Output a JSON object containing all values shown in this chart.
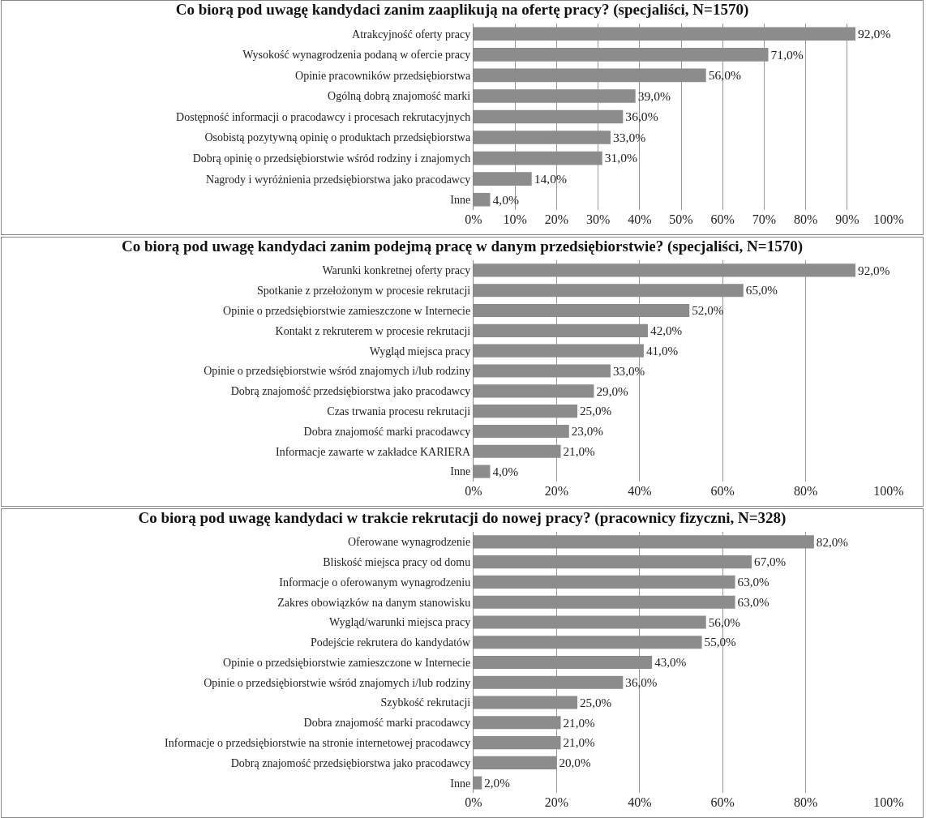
{
  "chart_data": [
    {
      "type": "bar",
      "orientation": "horizontal",
      "title": "Co biorą pod uwagę kandydaci zanim zaaplikują na ofertę pracy? (specjaliści, N=1570)",
      "categories": [
        "Atrakcyjność oferty pracy",
        "Wysokość wynagrodzenia podaną w ofercie pracy",
        "Opinie pracowników przedsiębiorstwa",
        "Ogólną dobrą znajomość marki",
        "Dostępność informacji o pracodawcy i procesach rekrutacyjnych",
        "Osobistą pozytywną opinię o produktach przedsiębiorstwa",
        "Dobrą opinię o przedsiębiorstwie wśród rodziny i znajomych",
        "Nagrody i wyróżnienia przedsiębiorstwa jako pracodawcy",
        "Inne"
      ],
      "values": [
        92,
        71,
        56,
        39,
        36,
        33,
        31,
        14,
        4
      ],
      "value_labels": [
        "92,0%",
        "71,0%",
        "56,0%",
        "39,0%",
        "36,0%",
        "33,0%",
        "31,0%",
        "14,0%",
        "4,0%"
      ],
      "color": "#8c8c8c",
      "xlim": [
        0,
        100
      ],
      "xticks": [
        {
          "value": 0,
          "label": "0%"
        },
        {
          "value": 10,
          "label": "10%"
        },
        {
          "value": 20,
          "label": "20%"
        },
        {
          "value": 30,
          "label": "30%"
        },
        {
          "value": 40,
          "label": "40%"
        },
        {
          "value": 50,
          "label": "50%"
        },
        {
          "value": 60,
          "label": "60%"
        },
        {
          "value": 70,
          "label": "70%"
        },
        {
          "value": 80,
          "label": "80%"
        },
        {
          "value": 90,
          "label": "90%"
        },
        {
          "value": 100,
          "label": "100%"
        }
      ],
      "grid": "x",
      "legend": false
    },
    {
      "type": "bar",
      "orientation": "horizontal",
      "title": "Co biorą pod uwagę kandydaci zanim podejmą pracę w danym przedsiębiorstwie? (specjaliści, N=1570)",
      "categories": [
        "Warunki konkretnej oferty pracy",
        "Spotkanie z przełożonym w procesie rekrutacji",
        "Opinie o przedsiębiorstwie zamieszczone w Internecie",
        "Kontakt z rekruterem w procesie rekrutacji",
        "Wygląd miejsca pracy",
        "Opinie o przedsiębiorstwie wśród znajomych i/lub rodziny",
        "Dobrą znajomość przedsiębiorstwa jako pracodawcy",
        "Czas trwania procesu rekrutacji",
        "Dobra znajomość marki pracodawcy",
        "Informacje zawarte w zakładce KARIERA",
        "Inne"
      ],
      "values": [
        92,
        65,
        52,
        42,
        41,
        33,
        29,
        25,
        23,
        21,
        4
      ],
      "value_labels": [
        "92,0%",
        "65,0%",
        "52,0%",
        "42,0%",
        "41,0%",
        "33,0%",
        "29,0%",
        "25,0%",
        "23,0%",
        "21,0%",
        "4,0%"
      ],
      "color": "#8c8c8c",
      "xlim": [
        0,
        100
      ],
      "xticks": [
        {
          "value": 0,
          "label": "0%"
        },
        {
          "value": 20,
          "label": "20%"
        },
        {
          "value": 40,
          "label": "40%"
        },
        {
          "value": 60,
          "label": "60%"
        },
        {
          "value": 80,
          "label": "80%"
        },
        {
          "value": 100,
          "label": "100%"
        }
      ],
      "grid": "x",
      "legend": false
    },
    {
      "type": "bar",
      "orientation": "horizontal",
      "title": "Co biorą pod uwagę kandydaci w trakcie rekrutacji do nowej pracy? (pracownicy fizyczni, N=328)",
      "categories": [
        "Oferowane wynagrodzenie",
        "Bliskość miejsca pracy od domu",
        "Informacje o oferowanym wynagrodzeniu",
        "Zakres obowiązków na danym stanowisku",
        "Wygląd/warunki miejsca pracy",
        "Podejście rekrutera do kandydatów",
        "Opinie o przedsiębiorstwie zamieszczone w Internecie",
        "Opinie o przedsiębiorstwie wśród znajomych i/lub rodziny",
        "Szybkość rekrutacji",
        "Dobra znajomość marki pracodawcy",
        "Informacje o przedsiębiorstwie na stronie internetowej pracodawcy",
        "Dobrą znajomość przedsiębiorstwa jako pracodawcy",
        "Inne"
      ],
      "values": [
        82,
        67,
        63,
        63,
        56,
        55,
        43,
        36,
        25,
        21,
        21,
        20,
        2
      ],
      "value_labels": [
        "82,0%",
        "67,0%",
        "63,0%",
        "63,0%",
        "56,0%",
        "55,0%",
        "43,0%",
        "36,0%",
        "25,0%",
        "21,0%",
        "21,0%",
        "20,0%",
        "2,0%"
      ],
      "color": "#8c8c8c",
      "xlim": [
        0,
        100
      ],
      "xticks": [
        {
          "value": 0,
          "label": "0%"
        },
        {
          "value": 20,
          "label": "20%"
        },
        {
          "value": 40,
          "label": "40%"
        },
        {
          "value": 60,
          "label": "60%"
        },
        {
          "value": 80,
          "label": "80%"
        },
        {
          "value": 100,
          "label": "100%"
        }
      ],
      "grid": "x",
      "legend": false
    }
  ]
}
